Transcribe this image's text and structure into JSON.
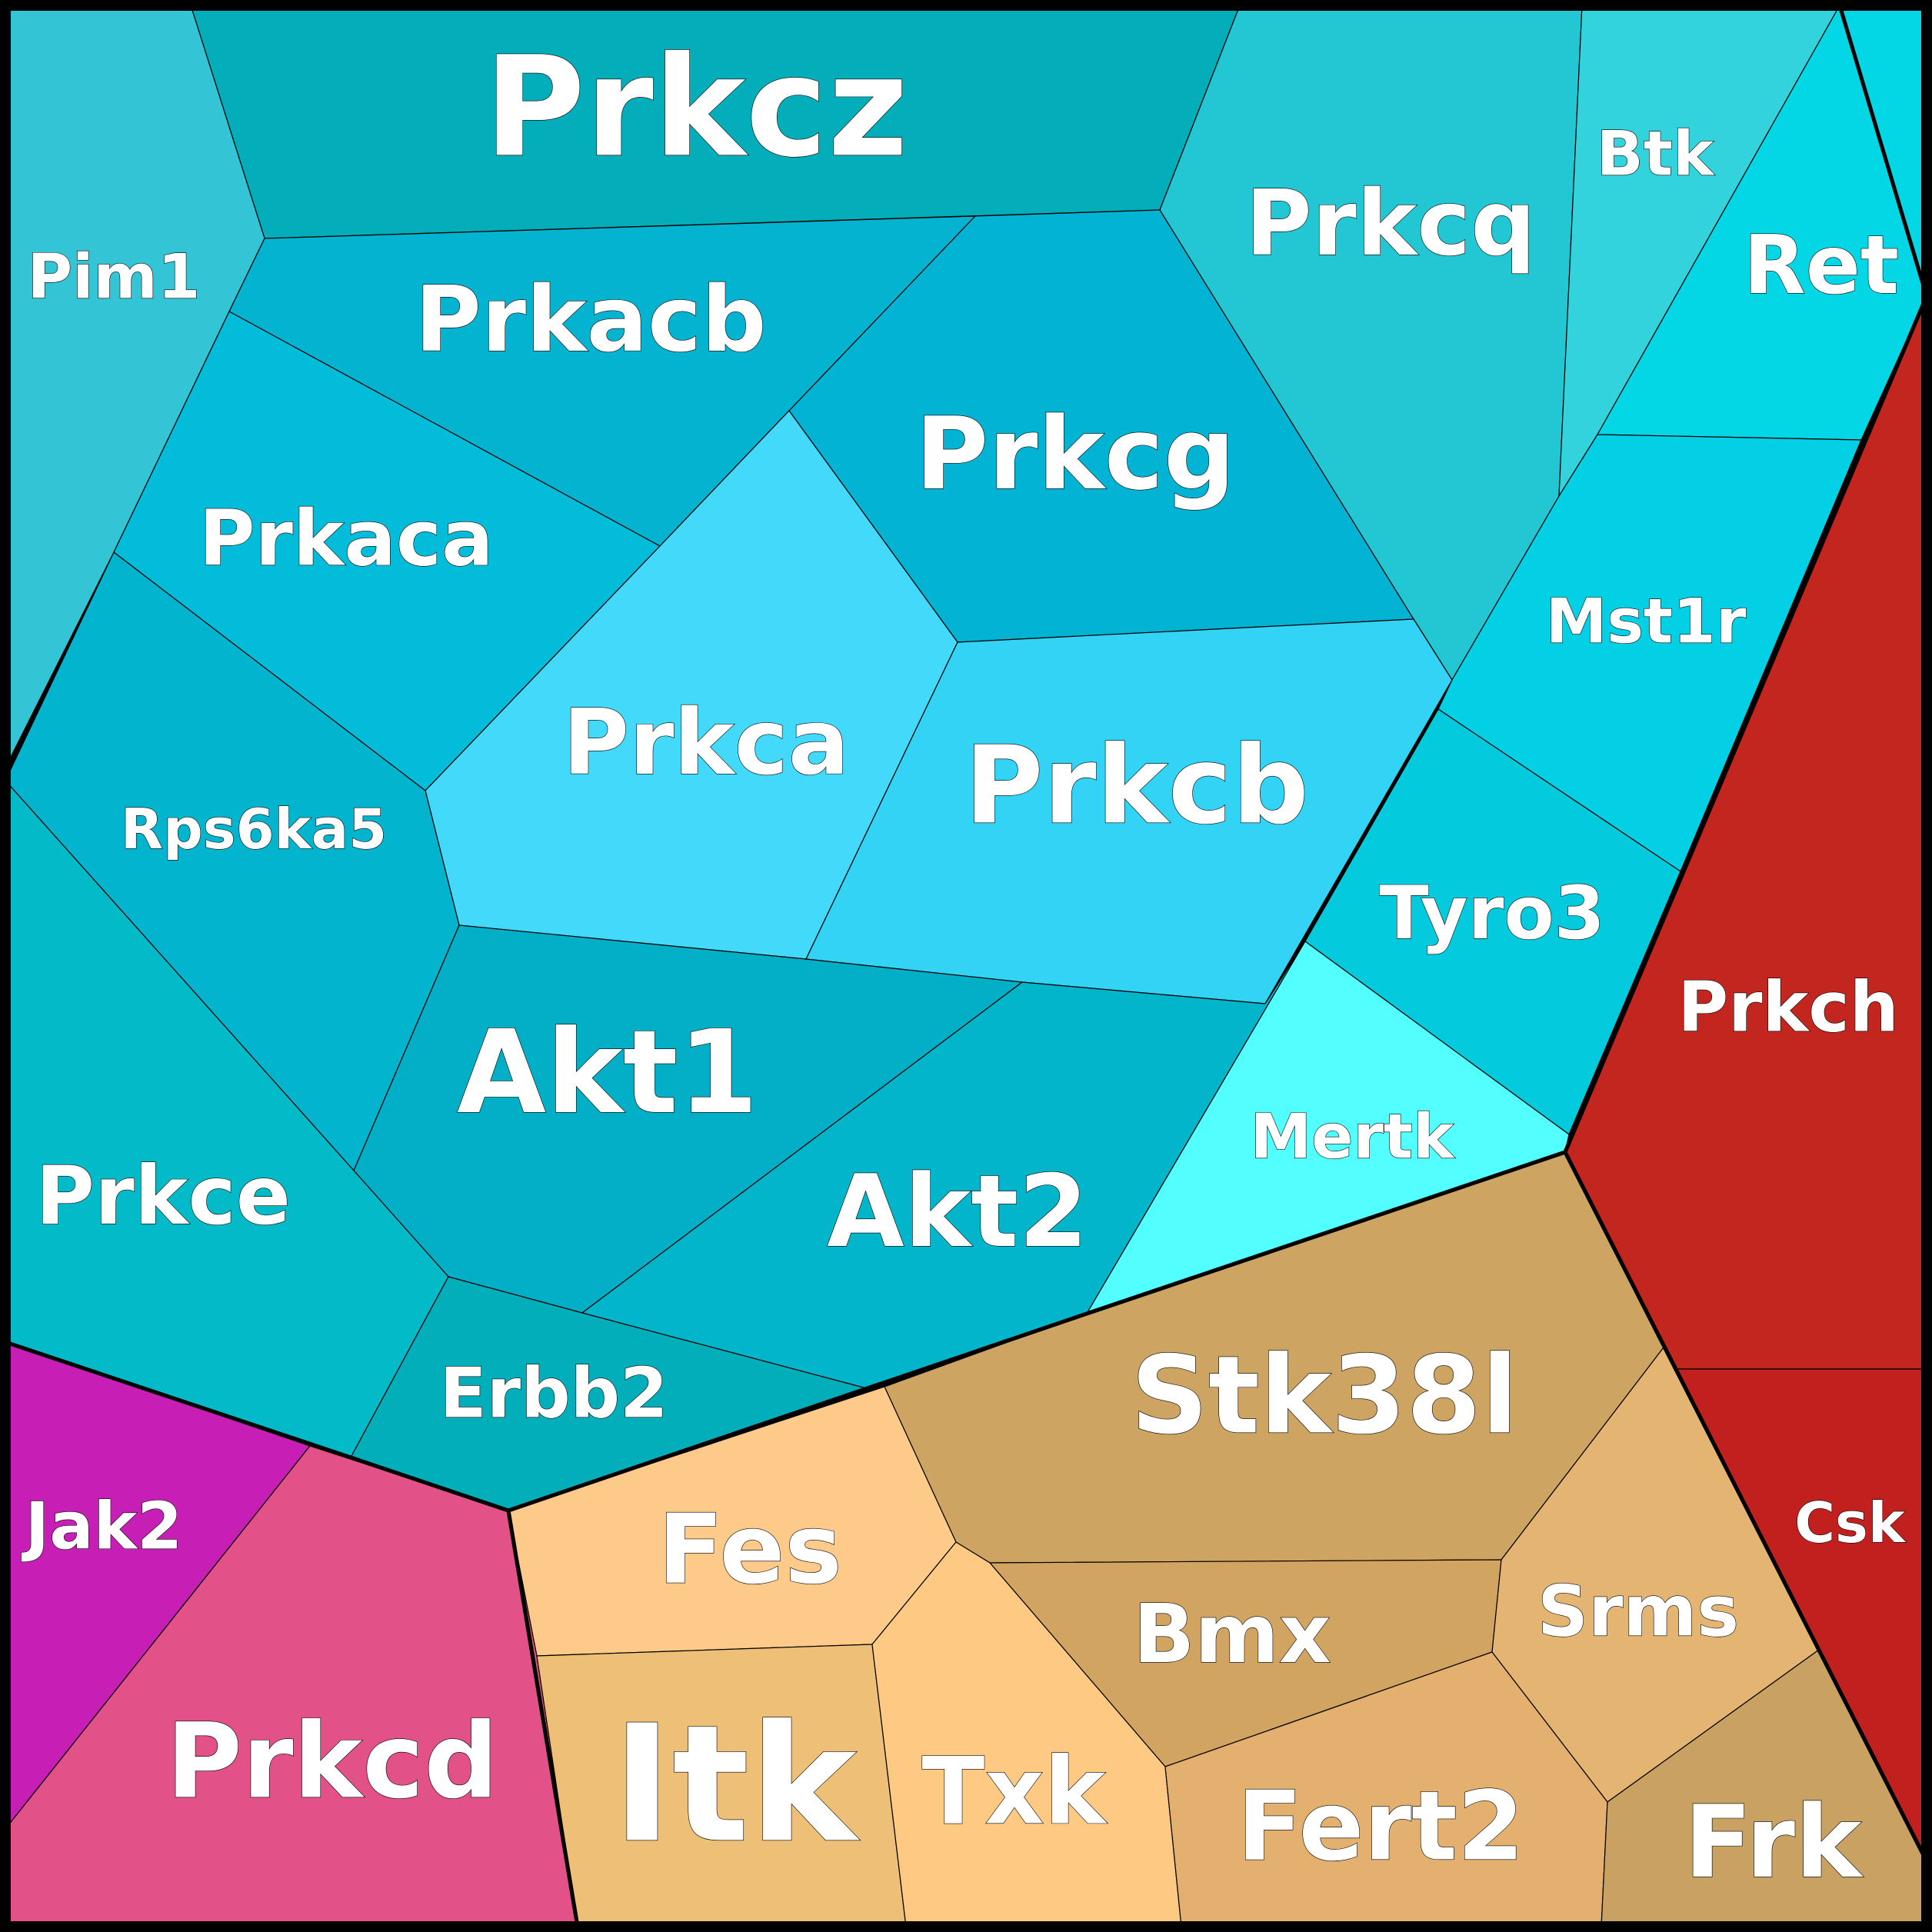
{
  "cells": [
    {
      "id": "prkcz",
      "label": "Prkcz",
      "color": "#03adb9"
    },
    {
      "id": "pim1",
      "label": "Pim1",
      "color": "#33c5d5"
    },
    {
      "id": "prkacb",
      "label": "Prkacb",
      "color": "#03b3d0"
    },
    {
      "id": "prkcg",
      "label": "Prkcg",
      "color": "#03b3d4"
    },
    {
      "id": "prkcq",
      "label": "Prkcq",
      "color": "#23c6d3"
    },
    {
      "id": "btk",
      "label": "Btk",
      "color": "#32d3dc"
    },
    {
      "id": "ret",
      "label": "Ret",
      "color": "#03d6e5"
    },
    {
      "id": "prkaca",
      "label": "Prkaca",
      "color": "#03bcd9"
    },
    {
      "id": "prkca",
      "label": "Prkca",
      "color": "#42d9fa"
    },
    {
      "id": "prkcb",
      "label": "Prkcb",
      "color": "#32d3f4"
    },
    {
      "id": "mst1r",
      "label": "Mst1r",
      "color": "#03cfe5"
    },
    {
      "id": "rps6ka5",
      "label": "Rps6ka5",
      "color": "#03b4cf"
    },
    {
      "id": "tyro3",
      "label": "Tyro3",
      "color": "#03cbdd"
    },
    {
      "id": "akt1",
      "label": "Akt1",
      "color": "#03afc6"
    },
    {
      "id": "akt2",
      "label": "Akt2",
      "color": "#03b5cb"
    },
    {
      "id": "mertk",
      "label": "Mertk",
      "color": "#52fefe"
    },
    {
      "id": "prkce",
      "label": "Prkce",
      "color": "#03bac8"
    },
    {
      "id": "erbb2",
      "label": "Erbb2",
      "color": "#03aebb"
    },
    {
      "id": "prkch",
      "label": "Prkch",
      "color": "#c2261e"
    },
    {
      "id": "csk",
      "label": "Csk",
      "color": "#c2201e"
    },
    {
      "id": "stk38l",
      "label": "Stk38l",
      "color": "#cda462"
    },
    {
      "id": "jak2",
      "label": "Jak2",
      "color": "#c71fb5"
    },
    {
      "id": "fes",
      "label": "Fes",
      "color": "#fdca89"
    },
    {
      "id": "prkcd",
      "label": "Prkcd",
      "color": "#e25187"
    },
    {
      "id": "bmx",
      "label": "Bmx",
      "color": "#d2a462"
    },
    {
      "id": "srms",
      "label": "Srms",
      "color": "#e4b473"
    },
    {
      "id": "itk",
      "label": "Itk",
      "color": "#eec077"
    },
    {
      "id": "txk",
      "label": "Txk",
      "color": "#fdc983"
    },
    {
      "id": "fert2",
      "label": "Fert2",
      "color": "#e4b070"
    },
    {
      "id": "frk",
      "label": "Frk",
      "color": "#c9a162"
    }
  ]
}
